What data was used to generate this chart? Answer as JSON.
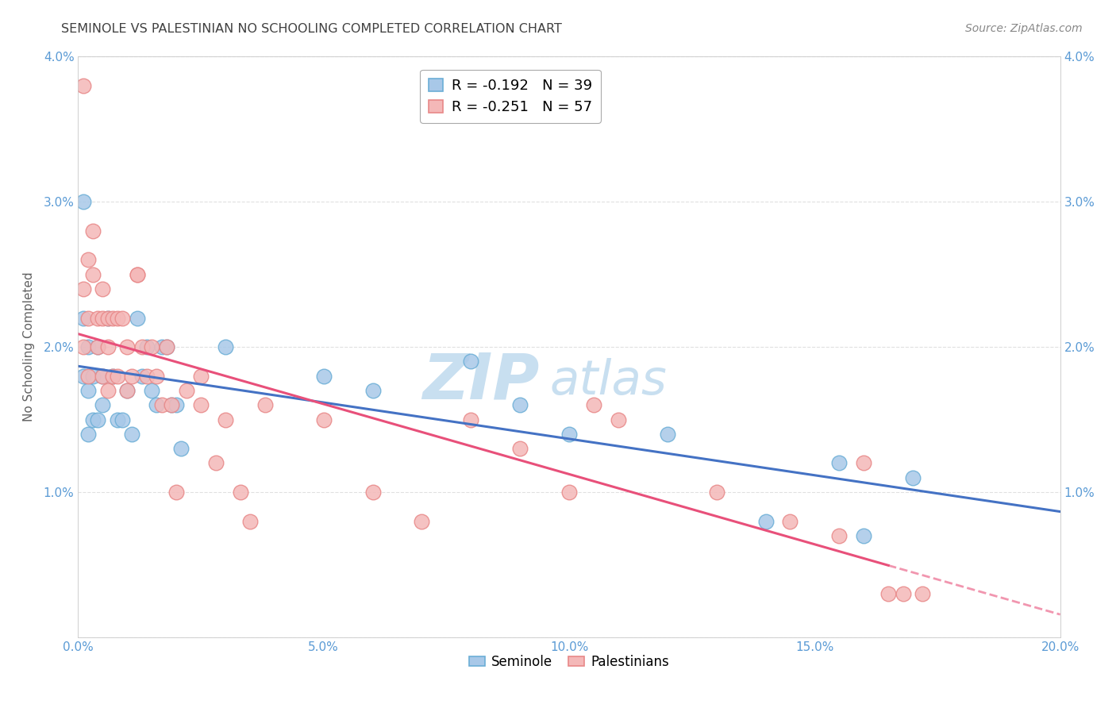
{
  "title": "SEMINOLE VS PALESTINIAN NO SCHOOLING COMPLETED CORRELATION CHART",
  "source": "Source: ZipAtlas.com",
  "ylabel": "No Schooling Completed",
  "xlim": [
    0.0,
    0.2
  ],
  "ylim": [
    0.0,
    0.04
  ],
  "xticks": [
    0.0,
    0.025,
    0.05,
    0.075,
    0.1,
    0.125,
    0.15,
    0.175,
    0.2
  ],
  "xticklabels": [
    "0.0%",
    "",
    "5.0%",
    "",
    "10.0%",
    "",
    "15.0%",
    "",
    "20.0%"
  ],
  "yticks_left": [
    0.0,
    0.01,
    0.02,
    0.03,
    0.04
  ],
  "ytick_left_labels": [
    "",
    "1.0%",
    "2.0%",
    "3.0%",
    "4.0%"
  ],
  "yticks_right": [
    0.01,
    0.02,
    0.03,
    0.04
  ],
  "ytick_right_labels": [
    "1.0%",
    "2.0%",
    "3.0%",
    "4.0%"
  ],
  "seminole_color": "#a8c8e8",
  "seminole_edge": "#6baed6",
  "palestinian_color": "#f4b8b8",
  "palestinian_edge": "#e88888",
  "trend_blue": "#4472C4",
  "trend_pink": "#E8507A",
  "seminole_R": -0.192,
  "seminole_N": 39,
  "palestinian_R": -0.251,
  "palestinian_N": 57,
  "seminole_x": [
    0.001,
    0.001,
    0.001,
    0.002,
    0.002,
    0.002,
    0.003,
    0.003,
    0.004,
    0.004,
    0.005,
    0.005,
    0.006,
    0.007,
    0.008,
    0.009,
    0.01,
    0.011,
    0.012,
    0.013,
    0.014,
    0.015,
    0.016,
    0.017,
    0.018,
    0.019,
    0.02,
    0.021,
    0.03,
    0.05,
    0.06,
    0.08,
    0.09,
    0.1,
    0.12,
    0.14,
    0.155,
    0.16,
    0.17
  ],
  "seminole_y": [
    0.03,
    0.022,
    0.018,
    0.02,
    0.017,
    0.014,
    0.018,
    0.015,
    0.02,
    0.015,
    0.018,
    0.016,
    0.022,
    0.018,
    0.015,
    0.015,
    0.017,
    0.014,
    0.022,
    0.018,
    0.02,
    0.017,
    0.016,
    0.02,
    0.02,
    0.016,
    0.016,
    0.013,
    0.02,
    0.018,
    0.017,
    0.019,
    0.016,
    0.014,
    0.014,
    0.008,
    0.012,
    0.007,
    0.011
  ],
  "palestinian_x": [
    0.001,
    0.001,
    0.001,
    0.002,
    0.002,
    0.002,
    0.003,
    0.003,
    0.004,
    0.004,
    0.005,
    0.005,
    0.005,
    0.006,
    0.006,
    0.006,
    0.007,
    0.007,
    0.008,
    0.008,
    0.009,
    0.01,
    0.01,
    0.011,
    0.012,
    0.012,
    0.013,
    0.014,
    0.015,
    0.016,
    0.017,
    0.018,
    0.019,
    0.02,
    0.022,
    0.025,
    0.025,
    0.028,
    0.03,
    0.033,
    0.035,
    0.038,
    0.05,
    0.06,
    0.07,
    0.08,
    0.09,
    0.1,
    0.105,
    0.11,
    0.13,
    0.145,
    0.155,
    0.16,
    0.165,
    0.168,
    0.172
  ],
  "palestinian_y": [
    0.038,
    0.024,
    0.02,
    0.026,
    0.022,
    0.018,
    0.028,
    0.025,
    0.022,
    0.02,
    0.024,
    0.022,
    0.018,
    0.022,
    0.02,
    0.017,
    0.022,
    0.018,
    0.022,
    0.018,
    0.022,
    0.02,
    0.017,
    0.018,
    0.025,
    0.025,
    0.02,
    0.018,
    0.02,
    0.018,
    0.016,
    0.02,
    0.016,
    0.01,
    0.017,
    0.018,
    0.016,
    0.012,
    0.015,
    0.01,
    0.008,
    0.016,
    0.015,
    0.01,
    0.008,
    0.015,
    0.013,
    0.01,
    0.016,
    0.015,
    0.01,
    0.008,
    0.007,
    0.012,
    0.003,
    0.003,
    0.003
  ],
  "watermark_zip_color": "#c8dff0",
  "watermark_atlas_color": "#c8dff0",
  "background_color": "#ffffff",
  "grid_color": "#e0e0e0",
  "spine_color": "#cccccc",
  "tick_color": "#5b9bd5",
  "title_color": "#404040",
  "source_color": "#888888",
  "ylabel_color": "#606060"
}
